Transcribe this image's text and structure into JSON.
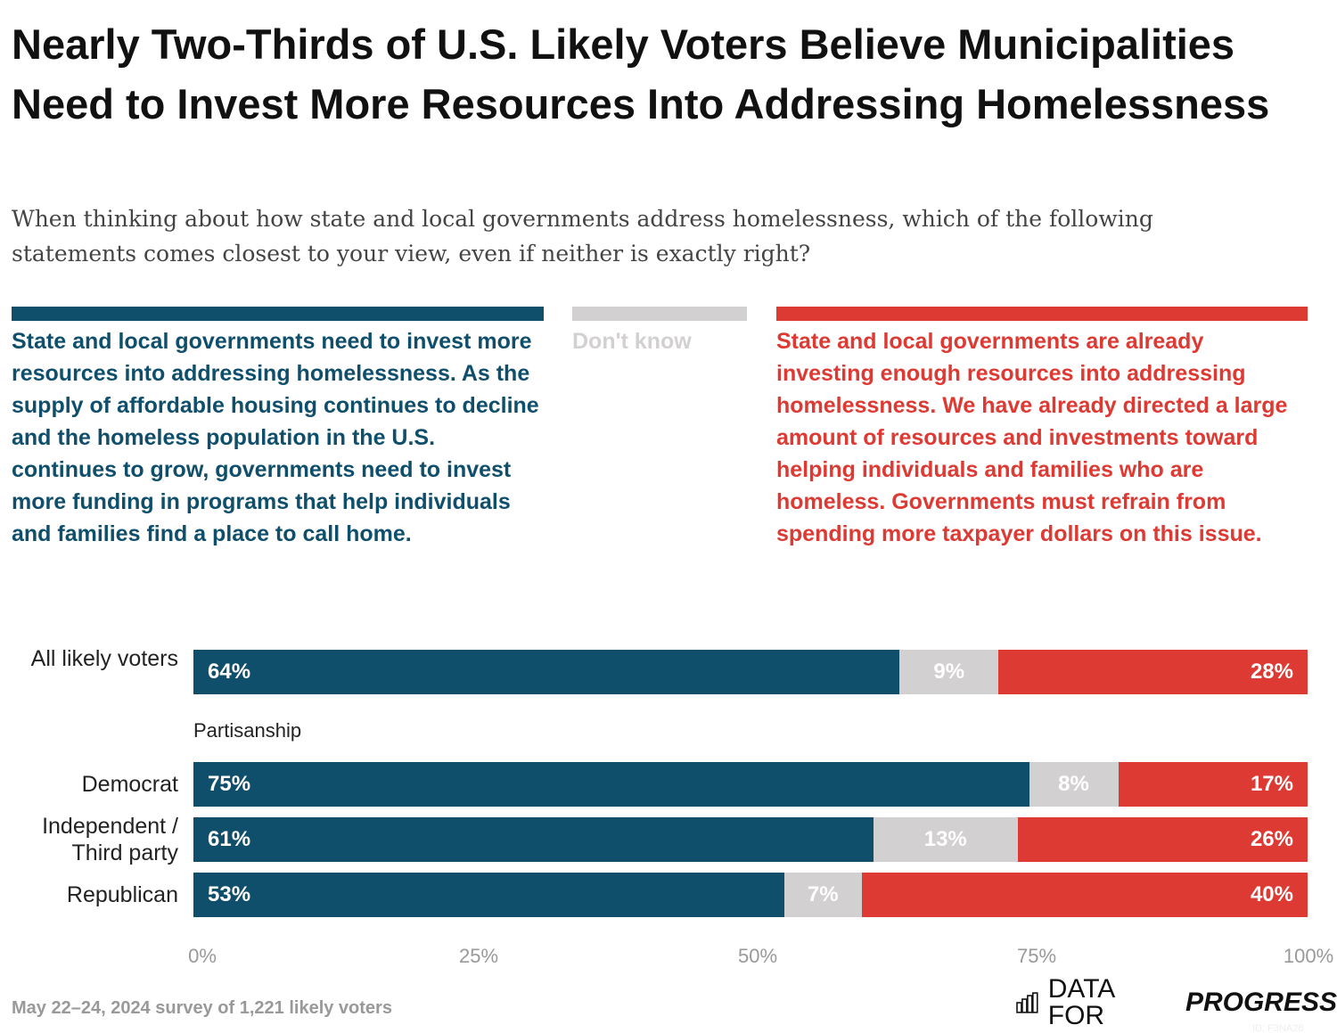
{
  "title": "Nearly Two-Thirds of U.S. Likely Voters Believe Municipalities Need to Invest More Resources Into Addressing Homelessness",
  "subtitle": "When thinking about how state and local governments address homelessness, which of the following statements comes closest to your view, even if neither is exactly right?",
  "colors": {
    "invest": "#0f4f6b",
    "dont_know": "#d3d0d2",
    "enough": "#dc3a33"
  },
  "chart_data": {
    "type": "bar",
    "orientation": "horizontal",
    "stacked": true,
    "series": [
      {
        "name": "State and local governments need to invest more resources into addressing homelessness. As the supply of affordable housing continues to decline and the homeless population in the U.S. continues to grow, governments need to invest more funding in programs that help individuals and families find a place to call home.",
        "labels": [
          "64%",
          "75%",
          "61%",
          "53%"
        ],
        "values": [
          64,
          75,
          61,
          53
        ]
      },
      {
        "name": "Don't know",
        "labels": [
          "9%",
          "8%",
          "13%",
          "7%"
        ],
        "values": [
          9,
          8,
          13,
          7
        ]
      },
      {
        "name": "State and local governments are already investing enough resources into addressing homelessness. We have already directed a large amount of resources and investments toward helping individuals and families who are homeless. Governments must refrain from spending more taxpayer dollars on this issue.",
        "labels": [
          "28%",
          "17%",
          "26%",
          "40%"
        ],
        "values": [
          28,
          17,
          26,
          40
        ]
      }
    ],
    "categories": [
      "All likely voters",
      "Democrat",
      "Independent / Third party",
      "Republican"
    ],
    "group_label": "Partisanship",
    "xlim": [
      0,
      100
    ],
    "x_ticks": [
      "0%",
      "25%",
      "50%",
      "75%",
      "100%"
    ]
  },
  "footer": "May 22–24, 2024 survey of 1,221 likely voters",
  "logo": {
    "text": "DATA FOR",
    "bold": "PROGRESS"
  },
  "id_text": "ID: F3NA28"
}
